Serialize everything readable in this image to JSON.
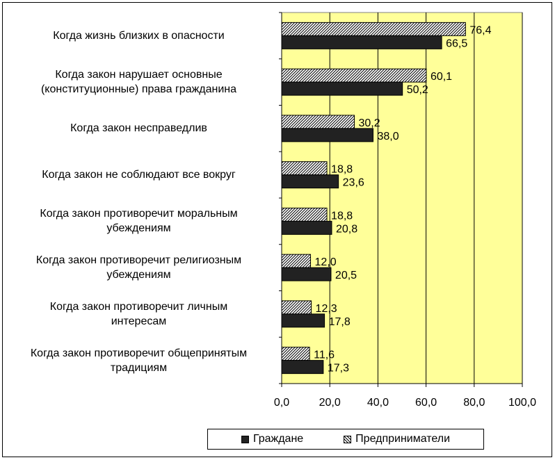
{
  "chart_data": {
    "type": "bar",
    "orientation": "horizontal",
    "categories": [
      [
        "Когда жизнь близких в опасности"
      ],
      [
        "Когда закон нарушает основные",
        "(конституционные) права гражданина"
      ],
      [
        "Когда закон несправедлив"
      ],
      [
        "Когда закон не соблюдают все вокруг"
      ],
      [
        "Когда закон противоречит моральным",
        "убеждениям"
      ],
      [
        "Когда закон противоречит религиозным",
        "убеждениям"
      ],
      [
        "Когда закон противоречит личным",
        "интересам"
      ],
      [
        "Когда закон противоречит общепринятым",
        "традициям"
      ]
    ],
    "series": [
      {
        "name": "Предприниматели",
        "values": [
          76.4,
          60.1,
          30.2,
          18.8,
          18.8,
          12.0,
          12.3,
          11.6
        ],
        "labels": [
          "76,4",
          "60,1",
          "30,2",
          "18,8",
          "18,8",
          "12,0",
          "12,3",
          "11,6"
        ],
        "fill": "hatch"
      },
      {
        "name": "Граждане",
        "values": [
          66.5,
          50.2,
          38.0,
          23.6,
          20.8,
          20.5,
          17.8,
          17.3
        ],
        "labels": [
          "66,5",
          "50,2",
          "38,0",
          "23,6",
          "20,8",
          "20,5",
          "17,8",
          "17,3"
        ],
        "fill": "solid"
      }
    ],
    "xlim": [
      0,
      100
    ],
    "xticks": [
      0,
      20,
      40,
      60,
      80,
      100
    ],
    "xtick_labels": [
      "0,0",
      "20,0",
      "40,0",
      "60,0",
      "80,0",
      "100,0"
    ],
    "grid": "vertical",
    "legend_position": "bottom",
    "legend": [
      "Граждане",
      "Предприниматели"
    ],
    "colors": {
      "plot_background": "#ffff99",
      "solid_bar": "#222222",
      "gridline": "#000000"
    }
  }
}
